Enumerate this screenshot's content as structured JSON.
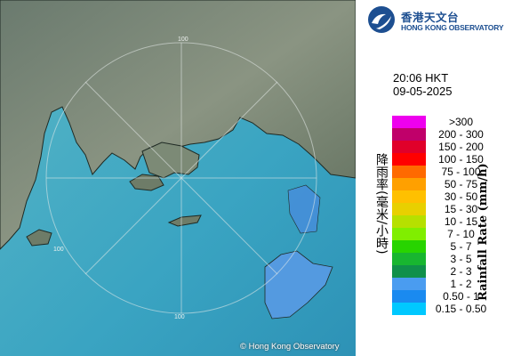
{
  "header": {
    "logo_cn": "香港天文台",
    "logo_en": "HONG KONG OBSERVATORY"
  },
  "timestamp": {
    "time": "20:06 HKT",
    "date": "09-05-2025"
  },
  "legend": {
    "title_cn": "降雨率(毫米/小時)",
    "title_en": "Rainfall Rate (mm/h)",
    "items": [
      {
        "label": ">300",
        "color": "#ee00ee"
      },
      {
        "label": "200 - 300",
        "color": "#c0006a"
      },
      {
        "label": "150 - 200",
        "color": "#e0002a"
      },
      {
        "label": "100 - 150",
        "color": "#ff0000"
      },
      {
        "label": "75 - 100",
        "color": "#ff6a00"
      },
      {
        "label": "50 - 75",
        "color": "#ffa000"
      },
      {
        "label": "30 - 50",
        "color": "#ffc000"
      },
      {
        "label": "15 - 30",
        "color": "#e8d000"
      },
      {
        "label": "10 - 15",
        "color": "#b6e000"
      },
      {
        "label": "7 - 10",
        "color": "#80ee00"
      },
      {
        "label": "5 - 7",
        "color": "#28d400"
      },
      {
        "label": "3 - 5",
        "color": "#18b630"
      },
      {
        "label": "2 - 3",
        "color": "#10904a"
      },
      {
        "label": "1 - 2",
        "color": "#4a9cf0"
      },
      {
        "label": "0.50 - 1",
        "color": "#1a8af0"
      },
      {
        "label": "0.15 - 0.50",
        "color": "#00c8ff"
      }
    ]
  },
  "map": {
    "range_labels": [
      "100",
      "100",
      "100"
    ],
    "copyright": "© Hong Kong Observatory"
  }
}
